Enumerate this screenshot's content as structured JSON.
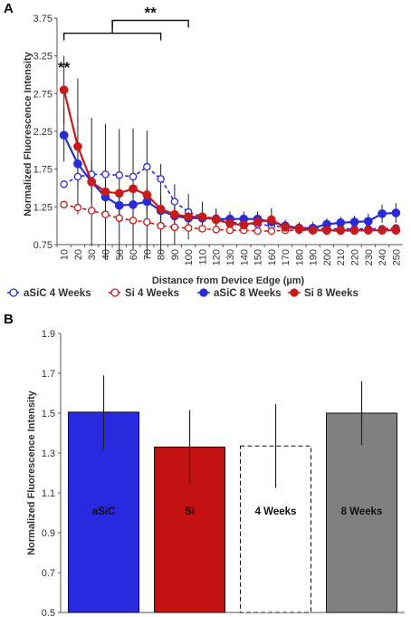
{
  "panels": {
    "a": "A",
    "b": "B"
  },
  "chart_data": [
    {
      "type": "line",
      "ylabel": "Normalized Fluorescence Intensity",
      "xlabel": "Distance from Device Edge (µm)",
      "ylim": [
        0.75,
        3.75
      ],
      "yticks": [
        "0.75",
        "1.25",
        "1.75",
        "2.25",
        "2.75",
        "3.25",
        "3.75"
      ],
      "yticks_num": [
        0.75,
        1.25,
        1.75,
        2.25,
        2.75,
        3.25,
        3.75
      ],
      "x": [
        10,
        20,
        30,
        40,
        50,
        60,
        70,
        80,
        90,
        100,
        110,
        120,
        130,
        140,
        150,
        160,
        170,
        180,
        190,
        200,
        210,
        220,
        230,
        240,
        250
      ],
      "legend_position": "bottom",
      "series": [
        {
          "name": "aSiC 4 Weeks",
          "color": "#2a2ad8",
          "dashed": true,
          "filled": false,
          "values": [
            1.55,
            1.65,
            1.68,
            1.68,
            1.67,
            1.65,
            1.78,
            1.62,
            1.32,
            1.18,
            1.12,
            1.1,
            1.05,
            1.03,
            1.02,
            1.0,
            0.98,
            0.97,
            0.97,
            0.96,
            0.96,
            0.96,
            0.96,
            0.96,
            0.97
          ]
        },
        {
          "name": "Si 4 Weeks",
          "color": "#c81a1a",
          "dashed": true,
          "filled": false,
          "values": [
            1.28,
            1.24,
            1.2,
            1.15,
            1.1,
            1.07,
            1.05,
            1.0,
            0.98,
            0.97,
            0.96,
            0.95,
            0.94,
            0.94,
            0.93,
            0.93,
            0.94,
            0.94,
            0.94,
            0.93,
            0.93,
            0.93,
            0.94,
            0.95,
            0.96
          ]
        },
        {
          "name": "aSiC 8 Weeks",
          "color": "#2a2ad8",
          "dashed": false,
          "filled": true,
          "values": [
            2.2,
            1.82,
            1.58,
            1.38,
            1.27,
            1.28,
            1.32,
            1.2,
            1.13,
            1.1,
            1.1,
            1.09,
            1.09,
            1.09,
            1.09,
            1.05,
            1.0,
            0.97,
            0.97,
            1.02,
            1.04,
            1.05,
            1.06,
            1.16,
            1.17
          ],
          "errors": [
            0.35,
            0.3,
            0.28,
            0.25,
            0.22,
            0.2,
            0.18,
            0.2,
            0.15,
            0.12,
            0.1,
            0.1,
            0.1,
            0.1,
            0.1,
            0.1,
            0.08,
            0.08,
            0.08,
            0.08,
            0.08,
            0.08,
            0.1,
            0.12,
            0.13
          ]
        },
        {
          "name": "Si 8 Weeks",
          "color": "#c81a1a",
          "dashed": false,
          "filled": true,
          "values": [
            2.8,
            2.05,
            1.58,
            1.45,
            1.43,
            1.49,
            1.41,
            1.22,
            1.15,
            1.12,
            1.12,
            1.08,
            1.03,
            1.01,
            1.05,
            1.08,
            0.98,
            0.96,
            0.94,
            0.94,
            0.94,
            0.94,
            0.94,
            0.94,
            0.94
          ],
          "errors": [
            0.45,
            0.9,
            0.85,
            0.9,
            0.85,
            0.8,
            0.85,
            0.6,
            0.4,
            0.3,
            0.2,
            0.15,
            0.12,
            0.1,
            0.12,
            0.15,
            0.08,
            0.06,
            0.06,
            0.06,
            0.06,
            0.06,
            0.06,
            0.06,
            0.06
          ]
        }
      ],
      "annotations": [
        {
          "text": "**",
          "x": 10
        },
        {
          "text": "**",
          "x_from": 10,
          "x_to": 100
        }
      ],
      "brackets": [
        {
          "from": 10,
          "to": 80,
          "y": 3.55
        },
        {
          "from": 45,
          "to": 100,
          "y": 3.72
        }
      ]
    },
    {
      "type": "bar",
      "ylabel": "Normalized Fluorescence Intensity",
      "ylim": [
        0.5,
        1.9
      ],
      "yticks": [
        "0.5",
        "0.7",
        "0.9",
        "1.1",
        "1.3",
        "1.5",
        "1.7",
        "1.9"
      ],
      "yticks_num": [
        0.5,
        0.7,
        0.9,
        1.1,
        1.3,
        1.5,
        1.7,
        1.9
      ],
      "categories": [
        "aSiC",
        "Si",
        "4 Weeks",
        "8 Weeks"
      ],
      "values": [
        1.505,
        1.33,
        1.335,
        1.5
      ],
      "errors": [
        0.185,
        0.185,
        0.21,
        0.16
      ],
      "colors": [
        "#2929e0",
        "#c41111",
        "#ffffff",
        "#808080"
      ],
      "dashed": [
        false,
        false,
        true,
        false
      ]
    }
  ]
}
